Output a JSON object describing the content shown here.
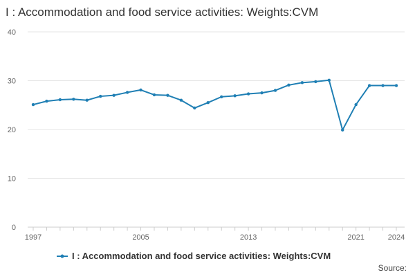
{
  "chart_data": {
    "type": "line",
    "title": "I : Accommodation and food service activities: Weights:CVM",
    "xlabel": "",
    "ylabel": "",
    "x": [
      1997,
      1998,
      1999,
      2000,
      2001,
      2002,
      2003,
      2004,
      2005,
      2006,
      2007,
      2008,
      2009,
      2010,
      2011,
      2012,
      2013,
      2014,
      2015,
      2016,
      2017,
      2018,
      2019,
      2020,
      2021,
      2022,
      2023,
      2024
    ],
    "series": [
      {
        "name": "I : Accommodation and food service activities: Weights:CVM",
        "color": "#1f7fb4",
        "values": [
          25.1,
          25.8,
          26.1,
          26.2,
          26.0,
          26.8,
          27.0,
          27.6,
          28.1,
          27.1,
          27.0,
          26.0,
          24.4,
          25.5,
          26.7,
          26.9,
          27.3,
          27.5,
          28.0,
          29.1,
          29.6,
          29.8,
          30.1,
          19.9,
          25.1,
          29.0,
          29.0,
          29.0
        ]
      }
    ],
    "ylim": [
      0,
      40
    ],
    "yticks": [
      0,
      10,
      20,
      30,
      40
    ],
    "xticks": [
      1997,
      2005,
      2013,
      2021,
      2024
    ],
    "xlim": [
      1997,
      2024
    ],
    "grid": true,
    "legend": "bottom-center"
  },
  "source_label": "Source:"
}
